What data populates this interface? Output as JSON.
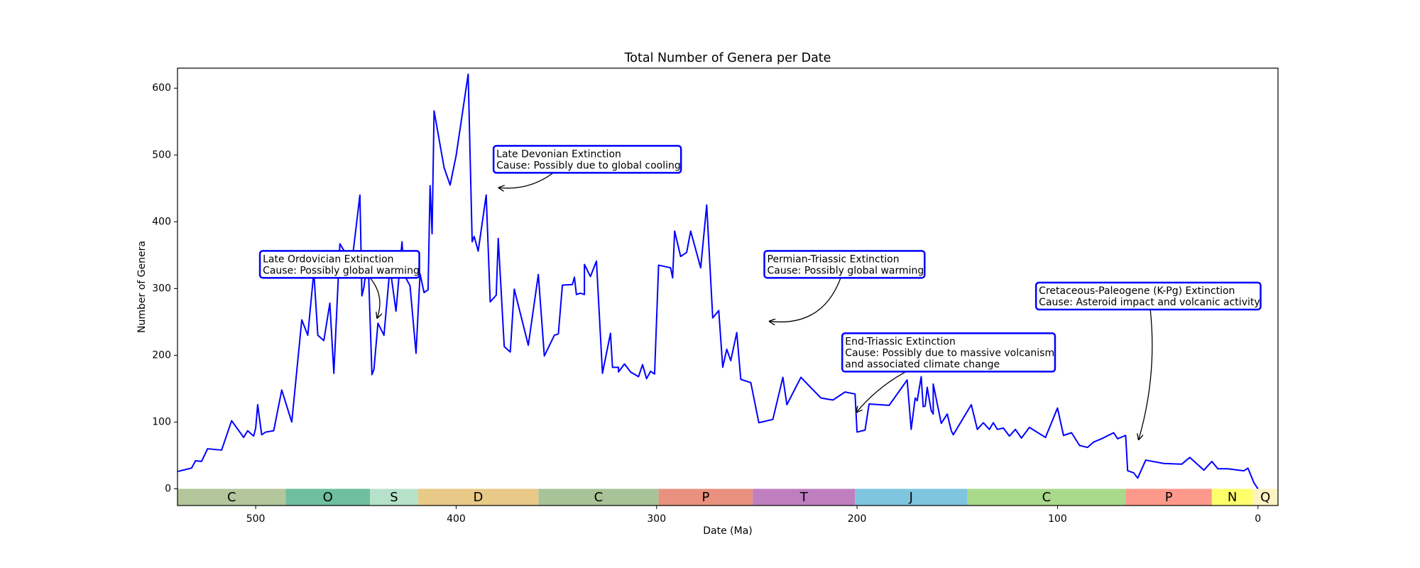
{
  "chart_data": {
    "type": "line",
    "title": "Total Number of Genera per Date",
    "xlabel": "Date (Ma)",
    "ylabel": "Number of Genera",
    "xlim": [
      539,
      -10
    ],
    "ylim": [
      -25,
      630
    ],
    "xticks": [
      500,
      400,
      300,
      200,
      100,
      0
    ],
    "yticks": [
      0,
      100,
      200,
      300,
      400,
      500,
      600
    ],
    "grid": false,
    "series": [
      {
        "name": "Genera",
        "color": "#0000ff",
        "x": [
          539,
          532,
          530,
          527,
          524,
          517,
          512,
          506,
          504,
          501,
          500,
          499,
          497,
          495,
          491,
          487,
          482,
          477,
          474,
          471,
          469,
          466,
          463,
          461,
          458,
          455,
          452,
          448,
          447,
          446,
          444,
          442,
          441,
          439,
          436,
          433,
          430,
          427,
          426,
          423,
          420,
          418,
          416,
          414,
          413,
          412,
          411,
          406,
          403,
          400,
          394,
          392,
          391,
          389,
          385,
          383,
          380,
          379,
          376,
          373,
          371,
          364,
          359,
          356,
          351,
          349,
          347,
          342,
          341,
          340,
          338,
          336,
          336,
          333,
          330,
          327,
          323,
          322,
          319,
          319,
          316,
          313,
          309,
          307,
          305,
          303,
          301,
          299,
          293,
          292,
          291,
          288,
          285,
          283,
          278,
          275,
          272,
          269,
          267,
          265,
          263,
          260,
          258,
          253,
          249,
          242,
          237,
          235,
          228,
          218,
          212,
          206,
          201,
          200,
          196,
          194,
          184,
          175,
          173,
          171,
          170,
          168,
          167,
          166,
          165,
          163,
          162,
          162,
          158,
          155,
          153,
          152,
          143,
          140,
          137,
          134,
          132,
          130,
          127,
          124,
          121,
          118,
          114,
          106,
          100,
          97,
          93,
          89,
          85,
          82,
          78,
          72,
          70,
          66,
          65,
          62,
          60,
          56,
          47,
          38,
          34,
          27,
          23,
          20,
          15,
          7,
          5,
          2,
          0
        ],
        "values": [
          26,
          31,
          42,
          41,
          60,
          58,
          102,
          77,
          87,
          79,
          91,
          126,
          81,
          85,
          87,
          148,
          100,
          253,
          230,
          325,
          230,
          222,
          278,
          173,
          367,
          352,
          339,
          440,
          289,
          302,
          351,
          171,
          179,
          248,
          230,
          332,
          266,
          370,
          321,
          304,
          203,
          322,
          294,
          298,
          454,
          382,
          566,
          481,
          455,
          499,
          621,
          370,
          378,
          356,
          440,
          280,
          290,
          375,
          213,
          205,
          299,
          215,
          321,
          199,
          230,
          232,
          305,
          306,
          317,
          291,
          293,
          291,
          336,
          318,
          341,
          173,
          233,
          182,
          182,
          175,
          187,
          175,
          168,
          186,
          165,
          176,
          172,
          335,
          331,
          316,
          386,
          348,
          354,
          386,
          331,
          425,
          256,
          267,
          182,
          209,
          192,
          234,
          164,
          159,
          99,
          104,
          167,
          126,
          167,
          136,
          133,
          145,
          142,
          85,
          88,
          127,
          125,
          163,
          89,
          136,
          132,
          168,
          123,
          124,
          152,
          117,
          112,
          157,
          98,
          112,
          87,
          81,
          126,
          89,
          99,
          89,
          99,
          89,
          91,
          79,
          89,
          76,
          92,
          77,
          121,
          80,
          84,
          65,
          62,
          70,
          75,
          84,
          75,
          80,
          27,
          24,
          16,
          43,
          38,
          37,
          47,
          28,
          41,
          30,
          30,
          27,
          31,
          9,
          0
        ]
      }
    ],
    "periods": [
      {
        "label": "C",
        "start": 539,
        "end": 485,
        "color": "#b4c79c"
      },
      {
        "label": "O",
        "start": 485,
        "end": 443,
        "color": "#6dbfa0"
      },
      {
        "label": "S",
        "start": 443,
        "end": 419,
        "color": "#b5e2c9"
      },
      {
        "label": "D",
        "start": 419,
        "end": 359,
        "color": "#e9c987"
      },
      {
        "label": "C",
        "start": 359,
        "end": 299,
        "color": "#a9c398"
      },
      {
        "label": "P",
        "start": 299,
        "end": 252,
        "color": "#e8917f"
      },
      {
        "label": "T",
        "start": 252,
        "end": 201,
        "color": "#bf7fbf"
      },
      {
        "label": "J",
        "start": 201,
        "end": 145,
        "color": "#80c5e0"
      },
      {
        "label": "C",
        "start": 145,
        "end": 66,
        "color": "#a9d98b"
      },
      {
        "label": "P",
        "start": 66,
        "end": 23,
        "color": "#fd998b"
      },
      {
        "label": "N",
        "start": 23,
        "end": 2.6,
        "color": "#ffff6b"
      },
      {
        "label": "Q",
        "start": 2.6,
        "end": -10,
        "color": "#fff2c2"
      }
    ],
    "annotations": [
      {
        "lines": [
          "Late Ordovician Extinction",
          "Cause: Possibly global warming"
        ],
        "x": 439.5,
        "y": 255
      },
      {
        "lines": [
          "Late Devonian Extinction",
          "Cause: Possibly due to global cooling"
        ],
        "x": 379,
        "y": 451
      },
      {
        "lines": [
          "Permian-Triassic Extinction",
          "Cause: Possibly global warming"
        ],
        "x": 244,
        "y": 251
      },
      {
        "lines": [
          "End-Triassic Extinction",
          "Cause: Possibly due to massive volcanism",
          "and associated climate change"
        ],
        "x": 200.5,
        "y": 114
      },
      {
        "lines": [
          "Cretaceous-Paleogene (K-Pg) Extinction",
          "Cause: Asteroid impact and volcanic activity"
        ],
        "x": 59.6,
        "y": 73
      }
    ]
  }
}
